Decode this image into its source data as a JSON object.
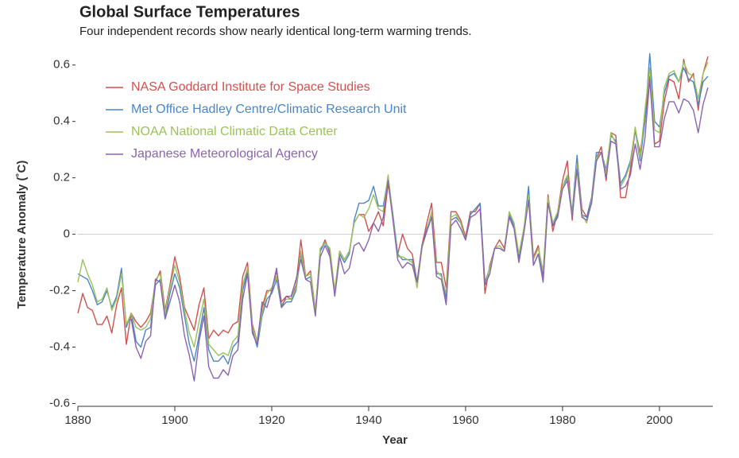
{
  "chart_data": {
    "type": "line",
    "title": "Global Surface Temperatures",
    "subtitle": "Four independent records show nearly identical long-term warming trends.",
    "x_label": "Year",
    "y_label": "Temperature Anomaly (˚C)",
    "x": [
      1880,
      1881,
      1882,
      1883,
      1884,
      1885,
      1886,
      1887,
      1888,
      1889,
      1890,
      1891,
      1892,
      1893,
      1894,
      1895,
      1896,
      1897,
      1898,
      1899,
      1900,
      1901,
      1902,
      1903,
      1904,
      1905,
      1906,
      1907,
      1908,
      1909,
      1910,
      1911,
      1912,
      1913,
      1914,
      1915,
      1916,
      1917,
      1918,
      1919,
      1920,
      1921,
      1922,
      1923,
      1924,
      1925,
      1926,
      1927,
      1928,
      1929,
      1930,
      1931,
      1932,
      1933,
      1934,
      1935,
      1936,
      1937,
      1938,
      1939,
      1940,
      1941,
      1942,
      1943,
      1944,
      1945,
      1946,
      1947,
      1948,
      1949,
      1950,
      1951,
      1952,
      1953,
      1954,
      1955,
      1956,
      1957,
      1958,
      1959,
      1960,
      1961,
      1962,
      1963,
      1964,
      1965,
      1966,
      1967,
      1968,
      1969,
      1970,
      1971,
      1972,
      1973,
      1974,
      1975,
      1976,
      1977,
      1978,
      1979,
      1980,
      1981,
      1982,
      1983,
      1984,
      1985,
      1986,
      1987,
      1988,
      1989,
      1990,
      1991,
      1992,
      1993,
      1994,
      1995,
      1996,
      1997,
      1998,
      1999,
      2000,
      2001,
      2002,
      2003,
      2004,
      2005,
      2006,
      2007,
      2008,
      2009,
      2010
    ],
    "series": [
      {
        "name": "NASA Goddard Institute for Space Studies",
        "color": "#d0514f",
        "values": [
          -0.28,
          -0.21,
          -0.26,
          -0.27,
          -0.32,
          -0.32,
          -0.29,
          -0.35,
          -0.25,
          -0.19,
          -0.39,
          -0.28,
          -0.31,
          -0.33,
          -0.31,
          -0.28,
          -0.17,
          -0.13,
          -0.27,
          -0.18,
          -0.08,
          -0.15,
          -0.26,
          -0.3,
          -0.34,
          -0.25,
          -0.19,
          -0.37,
          -0.34,
          -0.36,
          -0.34,
          -0.35,
          -0.32,
          -0.31,
          -0.15,
          -0.1,
          -0.32,
          -0.38,
          -0.26,
          -0.2,
          -0.2,
          -0.13,
          -0.24,
          -0.22,
          -0.23,
          -0.18,
          -0.02,
          -0.15,
          -0.13,
          -0.27,
          -0.06,
          -0.02,
          -0.07,
          -0.2,
          -0.06,
          -0.09,
          -0.06,
          0.04,
          0.07,
          0.07,
          0.01,
          0.04,
          0.08,
          0.03,
          0.18,
          0.06,
          -0.07,
          0.0,
          -0.05,
          -0.07,
          -0.17,
          -0.04,
          0.04,
          0.11,
          -0.1,
          -0.1,
          -0.19,
          0.08,
          0.08,
          0.05,
          -0.01,
          0.08,
          0.08,
          0.11,
          -0.21,
          -0.11,
          -0.05,
          -0.02,
          -0.05,
          0.07,
          0.03,
          -0.09,
          0.01,
          0.15,
          -0.08,
          -0.04,
          -0.15,
          0.14,
          0.01,
          0.08,
          0.19,
          0.26,
          0.05,
          0.27,
          0.09,
          0.06,
          0.13,
          0.27,
          0.31,
          0.19,
          0.36,
          0.35,
          0.13,
          0.13,
          0.23,
          0.37,
          0.29,
          0.4,
          0.56,
          0.32,
          0.33,
          0.47,
          0.55,
          0.54,
          0.48,
          0.62,
          0.54,
          0.57,
          0.44,
          0.57,
          0.63
        ]
      },
      {
        "name": "Met Office Hadley Centre/Climatic Research Unit",
        "color": "#4a86c8",
        "values": [
          -0.14,
          -0.15,
          -0.16,
          -0.2,
          -0.25,
          -0.24,
          -0.2,
          -0.26,
          -0.22,
          -0.12,
          -0.33,
          -0.28,
          -0.38,
          -0.4,
          -0.34,
          -0.33,
          -0.18,
          -0.16,
          -0.3,
          -0.21,
          -0.14,
          -0.19,
          -0.29,
          -0.39,
          -0.45,
          -0.36,
          -0.26,
          -0.41,
          -0.45,
          -0.45,
          -0.43,
          -0.46,
          -0.4,
          -0.38,
          -0.2,
          -0.13,
          -0.34,
          -0.4,
          -0.29,
          -0.23,
          -0.21,
          -0.16,
          -0.26,
          -0.24,
          -0.24,
          -0.2,
          -0.07,
          -0.16,
          -0.15,
          -0.28,
          -0.06,
          -0.03,
          -0.06,
          -0.21,
          -0.07,
          -0.1,
          -0.07,
          0.05,
          0.11,
          0.11,
          0.12,
          0.17,
          0.1,
          0.1,
          0.2,
          0.07,
          -0.07,
          -0.09,
          -0.09,
          -0.09,
          -0.17,
          -0.05,
          0.02,
          0.07,
          -0.14,
          -0.14,
          -0.23,
          0.05,
          0.06,
          0.04,
          -0.02,
          0.07,
          0.09,
          0.11,
          -0.17,
          -0.12,
          -0.05,
          -0.05,
          -0.06,
          0.07,
          0.03,
          -0.08,
          0.01,
          0.17,
          -0.11,
          -0.07,
          -0.14,
          0.12,
          0.03,
          0.07,
          0.17,
          0.2,
          0.08,
          0.28,
          0.07,
          0.06,
          0.13,
          0.29,
          0.29,
          0.23,
          0.35,
          0.33,
          0.18,
          0.21,
          0.26,
          0.37,
          0.26,
          0.4,
          0.64,
          0.4,
          0.38,
          0.5,
          0.56,
          0.57,
          0.54,
          0.59,
          0.55,
          0.54,
          0.46,
          0.54,
          0.56
        ]
      },
      {
        "name": "NOAA National Climatic Data Center",
        "color": "#9bc25a",
        "values": [
          -0.17,
          -0.09,
          -0.14,
          -0.18,
          -0.24,
          -0.23,
          -0.19,
          -0.27,
          -0.23,
          -0.14,
          -0.32,
          -0.28,
          -0.33,
          -0.34,
          -0.33,
          -0.3,
          -0.16,
          -0.14,
          -0.28,
          -0.19,
          -0.11,
          -0.17,
          -0.27,
          -0.35,
          -0.4,
          -0.31,
          -0.23,
          -0.39,
          -0.41,
          -0.43,
          -0.42,
          -0.43,
          -0.38,
          -0.36,
          -0.18,
          -0.12,
          -0.33,
          -0.38,
          -0.28,
          -0.21,
          -0.19,
          -0.15,
          -0.25,
          -0.23,
          -0.23,
          -0.19,
          -0.06,
          -0.15,
          -0.14,
          -0.27,
          -0.05,
          -0.03,
          -0.05,
          -0.2,
          -0.06,
          -0.09,
          -0.06,
          0.04,
          0.07,
          0.06,
          0.09,
          0.14,
          0.09,
          0.08,
          0.21,
          0.06,
          -0.08,
          -0.08,
          -0.09,
          -0.1,
          -0.19,
          -0.05,
          0.01,
          0.08,
          -0.13,
          -0.15,
          -0.21,
          0.06,
          0.07,
          0.04,
          -0.02,
          0.06,
          0.07,
          0.09,
          -0.18,
          -0.12,
          -0.05,
          -0.04,
          -0.06,
          0.08,
          0.04,
          -0.07,
          0.02,
          0.14,
          -0.09,
          -0.05,
          -0.13,
          0.13,
          0.04,
          0.08,
          0.17,
          0.21,
          0.07,
          0.25,
          0.07,
          0.04,
          0.12,
          0.27,
          0.29,
          0.22,
          0.36,
          0.32,
          0.17,
          0.2,
          0.25,
          0.38,
          0.27,
          0.44,
          0.59,
          0.37,
          0.36,
          0.52,
          0.57,
          0.58,
          0.54,
          0.61,
          0.57,
          0.56,
          0.48,
          0.57,
          0.61
        ]
      },
      {
        "name": "Japanese Meteorological Agency",
        "color": "#8a64b0",
        "values": [
          null,
          null,
          null,
          null,
          null,
          null,
          null,
          null,
          null,
          null,
          null,
          -0.3,
          -0.4,
          -0.44,
          -0.38,
          -0.36,
          -0.16,
          -0.17,
          -0.3,
          -0.24,
          -0.18,
          -0.24,
          -0.36,
          -0.43,
          -0.52,
          -0.38,
          -0.29,
          -0.47,
          -0.51,
          -0.51,
          -0.48,
          -0.5,
          -0.43,
          -0.41,
          -0.23,
          -0.14,
          -0.35,
          -0.39,
          -0.24,
          -0.26,
          -0.2,
          -0.12,
          -0.26,
          -0.22,
          -0.22,
          -0.16,
          -0.09,
          -0.16,
          -0.17,
          -0.29,
          -0.08,
          -0.04,
          -0.08,
          -0.22,
          -0.08,
          -0.14,
          -0.12,
          -0.04,
          -0.03,
          -0.06,
          -0.02,
          0.04,
          0.01,
          0.06,
          0.19,
          0.05,
          -0.09,
          -0.12,
          -0.1,
          -0.11,
          -0.17,
          -0.04,
          0.01,
          0.06,
          -0.15,
          -0.16,
          -0.25,
          0.03,
          0.05,
          0.02,
          -0.02,
          0.06,
          0.07,
          0.09,
          -0.18,
          -0.14,
          -0.05,
          -0.05,
          -0.06,
          0.06,
          0.02,
          -0.1,
          0.0,
          0.12,
          -0.11,
          -0.07,
          -0.17,
          0.11,
          0.03,
          0.06,
          0.16,
          0.19,
          0.06,
          0.23,
          0.06,
          0.05,
          0.11,
          0.26,
          0.29,
          0.2,
          0.33,
          0.32,
          0.16,
          0.17,
          0.21,
          0.32,
          0.23,
          0.34,
          0.55,
          0.31,
          0.31,
          0.41,
          0.47,
          0.47,
          0.43,
          0.48,
          0.47,
          0.44,
          0.36,
          0.46,
          0.52
        ]
      }
    ],
    "xlim": [
      1880,
      2011
    ],
    "xticks": [
      1880,
      1900,
      1920,
      1940,
      1960,
      1980,
      2000
    ],
    "ylim": [
      -0.61,
      0.65
    ],
    "yticks": [
      -0.6,
      -0.4,
      -0.2,
      0,
      0.2,
      0.4,
      0.6
    ],
    "zero_line": true,
    "legend": "top-left"
  }
}
